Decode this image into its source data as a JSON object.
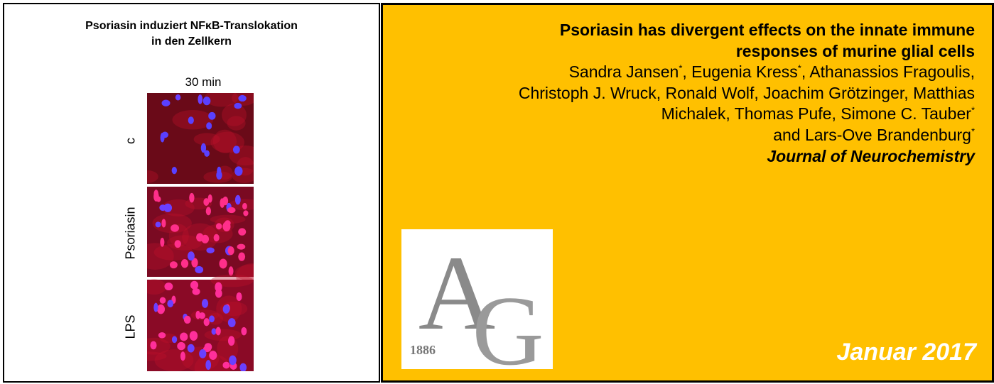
{
  "figure": {
    "title_lines": [
      "Psoriasin induziert NFκB-Translokation",
      "in den Zellkern"
    ],
    "time": "30 min",
    "panels": [
      "c",
      "Psoriasin",
      "LPS"
    ]
  },
  "paper": {
    "title_lines": [
      "Psoriasin has divergent effects on the innate immune",
      "responses of murine glial cells"
    ],
    "author_lines": [
      [
        {
          "text": "Sandra Jansen"
        },
        {
          "sup": "*"
        },
        {
          "text": ", Eugenia Kress"
        },
        {
          "sup": "*"
        },
        {
          "text": ", Athanassios Fragoulis,"
        }
      ],
      [
        {
          "text": "Christoph J. Wruck, Ronald Wolf, Joachim Grötzinger, Matthias"
        }
      ],
      [
        {
          "text": "Michalek, Thomas Pufe, Simone C. Tauber"
        },
        {
          "sup": "*"
        }
      ],
      [
        {
          "text": "and Lars-Ove Brandenburg"
        },
        {
          "sup": "*"
        }
      ]
    ],
    "journal": "Journal of Neurochemistry",
    "logo_year": "1886",
    "date": "Januar 2017"
  }
}
